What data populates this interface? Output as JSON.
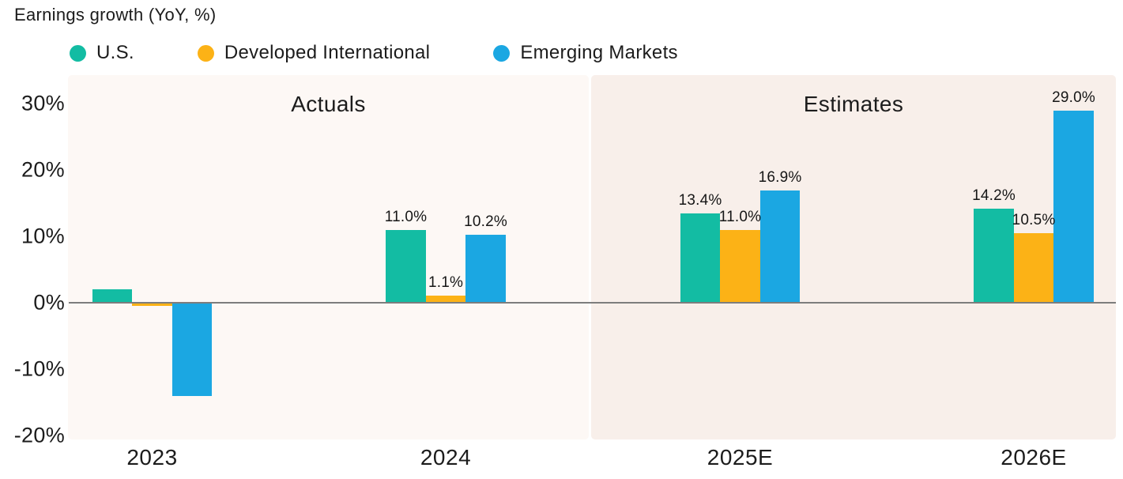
{
  "title": "Earnings growth (YoY, %)",
  "colors": {
    "text": "#1c1c1c",
    "zero_line": "#7d7d7d",
    "actuals_panel_bg": "#fdf8f5",
    "estimates_panel_bg": "#f8efea",
    "canvas_bg": "#ffffff",
    "us": "#13bca3",
    "developed_international": "#fcb216",
    "emerging_markets": "#1ba7e2"
  },
  "legend": {
    "items": [
      {
        "label": "U.S.",
        "color": "#13bca3"
      },
      {
        "label": "Developed International",
        "color": "#fcb216"
      },
      {
        "label": "Emerging Markets",
        "color": "#1ba7e2"
      }
    ]
  },
  "chart_data": {
    "type": "bar",
    "title": "Earnings growth (YoY, %)",
    "categories": [
      "2023",
      "2024",
      "2025E",
      "2026E"
    ],
    "series": [
      {
        "name": "U.S.",
        "color": "#13bca3",
        "values": [
          2.0,
          11.0,
          13.4,
          14.2
        ],
        "labels": [
          "",
          "11.0%",
          "13.4%",
          "14.2%"
        ]
      },
      {
        "name": "Developed International",
        "color": "#fcb216",
        "values": [
          -0.5,
          1.1,
          11.0,
          10.5
        ],
        "labels": [
          "",
          "1.1%",
          "11.0%",
          "10.5%"
        ]
      },
      {
        "name": "Emerging Markets",
        "color": "#1ba7e2",
        "values": [
          -14.0,
          10.2,
          16.9,
          29.0
        ],
        "labels": [
          "",
          "10.2%",
          "16.9%",
          "29.0%"
        ]
      }
    ],
    "sections": [
      {
        "label": "Actuals",
        "categories": [
          "2023",
          "2024"
        ],
        "bg": "#fdf8f5"
      },
      {
        "label": "Estimates",
        "categories": [
          "2025E",
          "2026E"
        ],
        "bg": "#f8efea"
      }
    ],
    "y_axis": {
      "ticks": [
        {
          "label": "30%",
          "value": 30
        },
        {
          "label": "20%",
          "value": 20
        },
        {
          "label": "10%",
          "value": 10
        },
        {
          "label": "0%",
          "value": 0
        },
        {
          "label": "-10%",
          "value": -10
        },
        {
          "label": "-20%",
          "value": -20
        }
      ],
      "ylim": [
        -20.6,
        34.3
      ]
    },
    "grid": false,
    "legend_position": "top",
    "value_unit": "%"
  }
}
